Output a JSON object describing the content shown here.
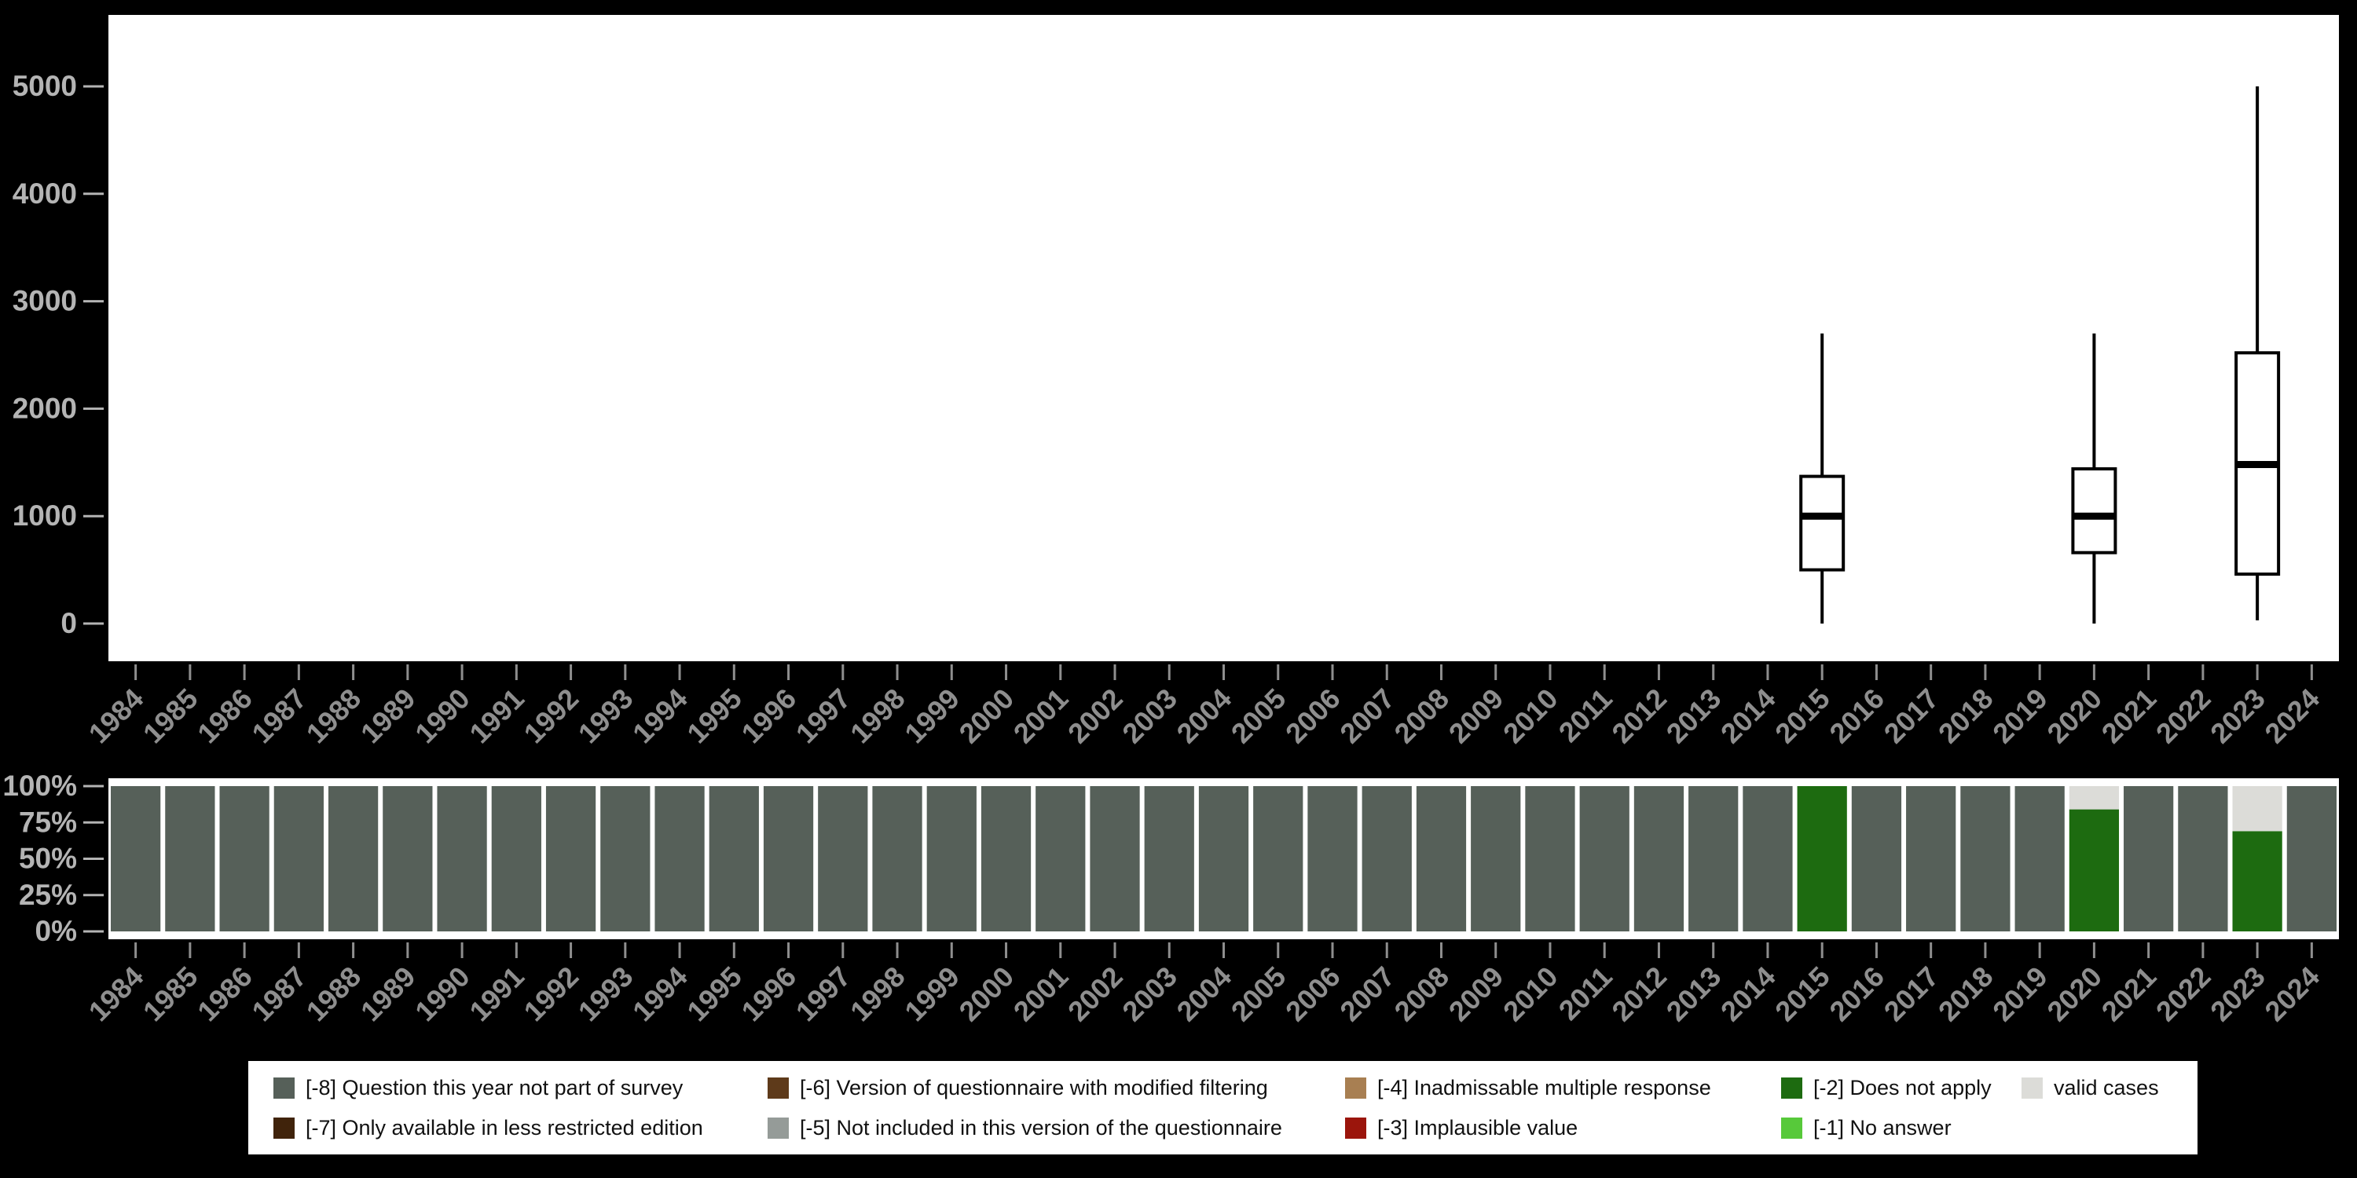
{
  "colors": {
    "background": "#000000",
    "panel_bg": "#ffffff",
    "axis_label": "#8e8e8e",
    "ytick_label": "#b4b4b4",
    "box_stroke": "#000000"
  },
  "code_colors": {
    "-8": "#566059",
    "-7": "#40230b",
    "-6": "#5e3a1a",
    "-5": "#959b98",
    "-4": "#a87f52",
    "-3": "#9b150c",
    "-2": "#1d6b10",
    "-1": "#57c93a",
    "valid": "#dcdcd8"
  },
  "chart_data": [
    {
      "name": "valid-cases-boxplots",
      "type": "boxplot",
      "title": "",
      "xlabel": "",
      "ylabel": "",
      "ylim": [
        0,
        5000
      ],
      "yticks": [
        0,
        1000,
        2000,
        3000,
        4000,
        5000
      ],
      "grid": false,
      "categories": [
        1984,
        1985,
        1986,
        1987,
        1988,
        1989,
        1990,
        1991,
        1992,
        1993,
        1994,
        1995,
        1996,
        1997,
        1998,
        1999,
        2000,
        2001,
        2002,
        2003,
        2004,
        2005,
        2006,
        2007,
        2008,
        2009,
        2010,
        2011,
        2012,
        2013,
        2014,
        2015,
        2016,
        2017,
        2018,
        2019,
        2020,
        2021,
        2022,
        2023,
        2024
      ],
      "boxes": [
        {
          "category": 2015,
          "whisker_low": 0,
          "q1": 500,
          "median": 1000,
          "q3": 1370,
          "whisker_high": 2700
        },
        {
          "category": 2020,
          "whisker_low": 0,
          "q1": 660,
          "median": 1000,
          "q3": 1440,
          "whisker_high": 2700
        },
        {
          "category": 2023,
          "whisker_low": 30,
          "q1": 460,
          "median": 1480,
          "q3": 2520,
          "whisker_high": 5000
        }
      ]
    },
    {
      "name": "missing-value-shares",
      "type": "bar",
      "stacked": true,
      "unit": "percent",
      "ylim": [
        0,
        100
      ],
      "grid": false,
      "yticks": [
        {
          "label": "0%",
          "value": 0
        },
        {
          "label": "25%",
          "value": 25
        },
        {
          "label": "50%",
          "value": 50
        },
        {
          "label": "75%",
          "value": 75
        },
        {
          "label": "100%",
          "value": 100
        }
      ],
      "categories": [
        1984,
        1985,
        1986,
        1987,
        1988,
        1989,
        1990,
        1991,
        1992,
        1993,
        1994,
        1995,
        1996,
        1997,
        1998,
        1999,
        2000,
        2001,
        2002,
        2003,
        2004,
        2005,
        2006,
        2007,
        2008,
        2009,
        2010,
        2011,
        2012,
        2013,
        2014,
        2015,
        2016,
        2017,
        2018,
        2019,
        2020,
        2021,
        2022,
        2023,
        2024
      ],
      "default_stack": [
        {
          "code": "-8",
          "value": 100
        }
      ],
      "overrides": {
        "2015": [
          {
            "code": "-2",
            "value": 100
          }
        ],
        "2020": [
          {
            "code": "-2",
            "value": 84
          },
          {
            "code": "valid",
            "value": 16
          }
        ],
        "2023": [
          {
            "code": "-2",
            "value": 69
          },
          {
            "code": "valid",
            "value": 31
          }
        ]
      }
    }
  ],
  "legend": {
    "rows": [
      [
        {
          "code": "-8",
          "label": "[-8] Question this year not part of survey"
        },
        {
          "code": "-6",
          "label": "[-6] Version of questionnaire with modified filtering"
        },
        {
          "code": "-4",
          "label": "[-4] Inadmissable multiple response"
        },
        {
          "code": "-2",
          "label": "[-2] Does not apply"
        },
        {
          "code": "valid",
          "label": "valid cases"
        }
      ],
      [
        {
          "code": "-7",
          "label": "[-7] Only available in less restricted edition"
        },
        {
          "code": "-5",
          "label": "[-5] Not included in this version of the questionnaire"
        },
        {
          "code": "-3",
          "label": "[-3] Implausible value"
        },
        {
          "code": "-1",
          "label": "[-1] No answer"
        }
      ]
    ]
  }
}
